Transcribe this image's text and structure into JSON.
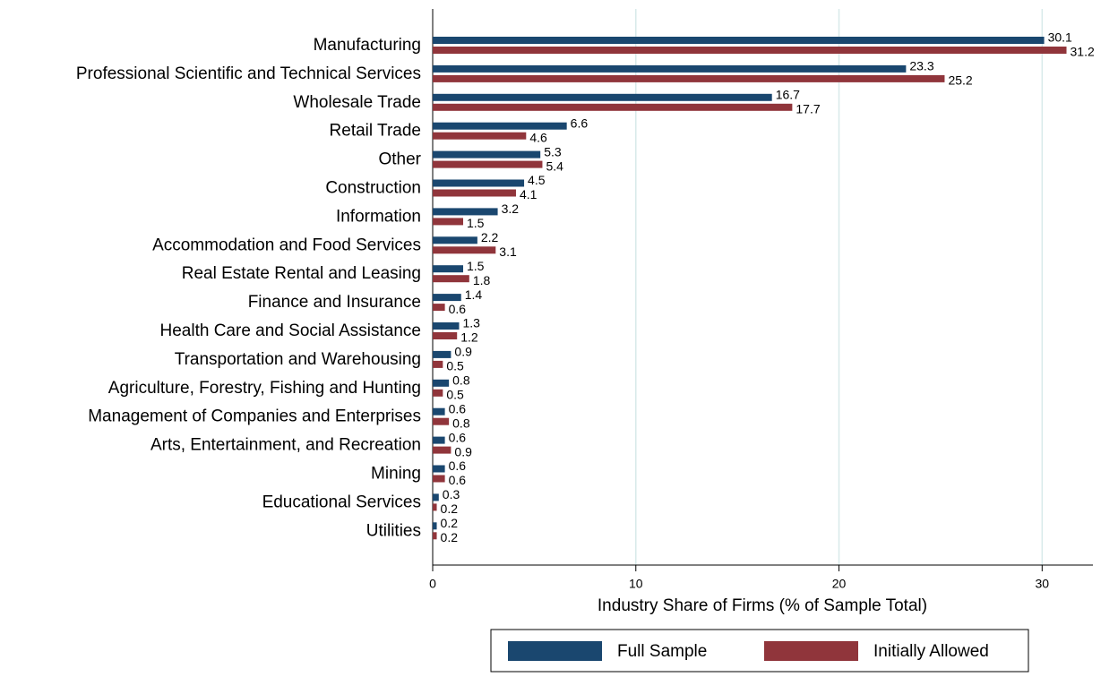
{
  "chart_data": {
    "type": "bar",
    "orientation": "horizontal",
    "xlabel": "Industry Share of Firms (% of Sample Total)",
    "categories": [
      "Manufacturing",
      "Professional Scientific and Technical Services",
      "Wholesale Trade",
      "Retail Trade",
      "Other",
      "Construction",
      "Information",
      "Accommodation and Food Services",
      "Real Estate Rental and Leasing",
      "Finance and Insurance",
      "Health Care and Social Assistance",
      "Transportation and Warehousing",
      "Agriculture, Forestry, Fishing and Hunting",
      "Management of Companies and Enterprises",
      "Arts, Entertainment, and Recreation",
      "Mining",
      "Educational Services",
      "Utilities"
    ],
    "series": [
      {
        "name": "Full Sample",
        "color": "#1a476f",
        "values": [
          30.1,
          23.3,
          16.7,
          6.6,
          5.3,
          4.5,
          3.2,
          2.2,
          1.5,
          1.4,
          1.3,
          0.9,
          0.8,
          0.6,
          0.6,
          0.6,
          0.3,
          0.2
        ]
      },
      {
        "name": "Initially Allowed",
        "color": "#90353b",
        "values": [
          31.2,
          25.2,
          17.7,
          4.6,
          5.4,
          4.1,
          1.5,
          3.1,
          1.8,
          0.6,
          1.2,
          0.5,
          0.5,
          0.8,
          0.9,
          0.6,
          0.2,
          0.2
        ]
      }
    ],
    "xlim": [
      0,
      32.5
    ],
    "xticks": [
      0,
      10,
      20,
      30
    ],
    "grid": true,
    "legend": "bottom"
  }
}
